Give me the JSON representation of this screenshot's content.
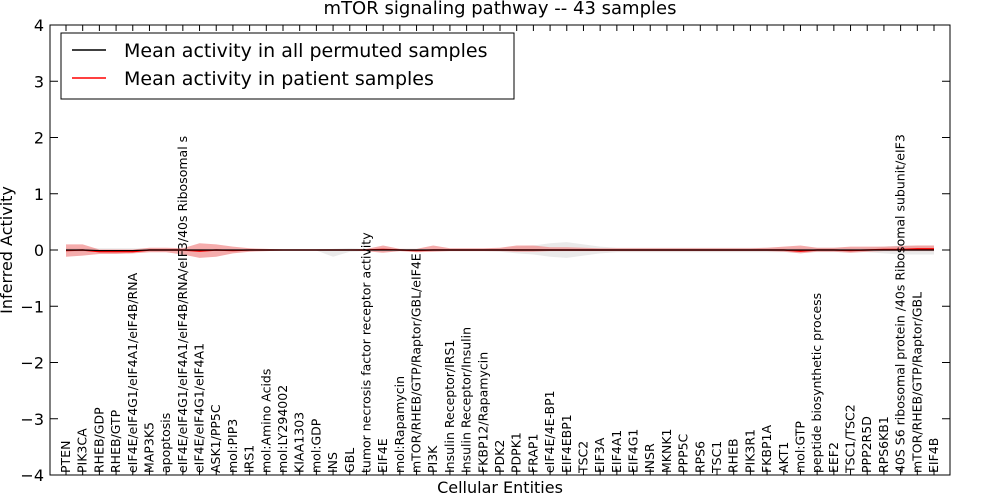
{
  "chart_data": {
    "type": "line",
    "title": "mTOR signaling pathway -- 43 samples",
    "xlabel": "Cellular Entities",
    "ylabel": "Inferred Activity",
    "ylim": [
      -4,
      4
    ],
    "yticks": [
      -4,
      -3,
      -2,
      -1,
      0,
      1,
      2,
      3,
      4
    ],
    "ytick_labels": [
      "−4",
      "−3",
      "−2",
      "−1",
      "0",
      "1",
      "2",
      "3",
      "4"
    ],
    "grid": false,
    "legend_position": "top-left",
    "categories": [
      "PTEN",
      "PIK3CA",
      "RHEB/GDP",
      "RHEB/GTP",
      "eIF4E/eIF4G1/eIF4A1/eIF4B/RNA",
      "MAP3K5",
      "apoptosis",
      "eIF4E/eIF4G1/eIF4A1/eIF4B/RNA/eIF3/40s Ribosomal s",
      "eIF4E/eIF4G1/eIF4A1",
      "ASK1/PP5C",
      "mol:PIP3",
      "IRS1",
      "mol:Amino Acids",
      "mol:LY294002",
      "KIAA1303",
      "mol:GDP",
      "INS",
      "GBL",
      "tumor necrosis factor receptor activity",
      "EIF4E",
      "mol:Rapamycin",
      "mTOR/RHEB/GTP/Raptor/GBL/eIF4E",
      "PI3K",
      "Insulin Receptor/IRS1",
      "Insulin Receptor/Insulin",
      "FKBP12/Rapamycin",
      "PDK2",
      "PDPK1",
      "FRAP1",
      "eIF4E/4E-BP1",
      "EIF4EBP1",
      "TSC2",
      "EIF3A",
      "EIF4A1",
      "EIF4G1",
      "INSR",
      "MKNK1",
      "PPP5C",
      "RPS6",
      "TSC1",
      "RHEB",
      "PIK3R1",
      "FKBP1A",
      "AKT1",
      "mol:GTP",
      "peptide biosynthetic process",
      "EEF2",
      "TSC1/TSC2",
      "PPP2R5D",
      "RPS6KB1",
      "40S S6 ribosomal protein /40s Ribosomal subunit/eIF3",
      "mTOR/RHEB/GTP/Raptor/GBL",
      "EIF4B"
    ],
    "series": [
      {
        "name": "Mean activity in all permuted samples",
        "color": "#000000",
        "values": [
          0,
          0,
          -0.01,
          -0.01,
          -0.01,
          0,
          0,
          0,
          0,
          0,
          0,
          0,
          0,
          0,
          0,
          0,
          0,
          0,
          0,
          0,
          0,
          0,
          0,
          0,
          0,
          0,
          0,
          0,
          0,
          0,
          0,
          0,
          0,
          0,
          0,
          0,
          0,
          0,
          0,
          0,
          0,
          0,
          0,
          0,
          0,
          0,
          0,
          0,
          0,
          0,
          0,
          0,
          0
        ],
        "band_low": [
          -0.04,
          -0.03,
          -0.03,
          -0.03,
          -0.03,
          -0.02,
          -0.02,
          -0.02,
          -0.02,
          -0.02,
          -0.02,
          -0.01,
          -0.01,
          -0.01,
          -0.01,
          -0.01,
          -0.12,
          -0.03,
          -0.02,
          -0.03,
          -0.02,
          -0.02,
          -0.02,
          -0.02,
          -0.02,
          -0.02,
          -0.03,
          -0.06,
          -0.08,
          -0.12,
          -0.14,
          -0.1,
          -0.06,
          -0.04,
          -0.04,
          -0.04,
          -0.04,
          -0.04,
          -0.04,
          -0.04,
          -0.04,
          -0.04,
          -0.04,
          -0.04,
          -0.04,
          -0.04,
          -0.04,
          -0.04,
          -0.04,
          -0.06,
          -0.08,
          -0.08,
          -0.08
        ],
        "band_high": [
          0.04,
          0.03,
          0.03,
          0.03,
          0.03,
          0.02,
          0.02,
          0.02,
          0.02,
          0.02,
          0.02,
          0.01,
          0.01,
          0.01,
          0.01,
          0.01,
          0.02,
          0.03,
          0.02,
          0.03,
          0.02,
          0.02,
          0.02,
          0.02,
          0.02,
          0.02,
          0.03,
          0.06,
          0.08,
          0.12,
          0.14,
          0.1,
          0.06,
          0.04,
          0.04,
          0.04,
          0.04,
          0.04,
          0.04,
          0.04,
          0.04,
          0.04,
          0.04,
          0.04,
          0.04,
          0.04,
          0.04,
          0.04,
          0.04,
          0.06,
          0.08,
          0.08,
          0.08
        ]
      },
      {
        "name": "Mean activity in patient samples",
        "color": "#ff0000",
        "values": [
          -0.01,
          0,
          -0.03,
          -0.03,
          -0.03,
          0,
          0,
          0,
          -0.02,
          0,
          -0.01,
          0,
          0,
          0,
          0,
          0,
          0,
          0,
          0,
          0.01,
          0,
          -0.01,
          0,
          0,
          0,
          0,
          0,
          0,
          0,
          0,
          0,
          0,
          0,
          0,
          0,
          0,
          0,
          0,
          0,
          0,
          0,
          0,
          0,
          0,
          -0.02,
          0,
          0,
          -0.01,
          0,
          0.01,
          0.01,
          0.02,
          0.02
        ],
        "band_low": [
          -0.12,
          -0.1,
          -0.07,
          -0.07,
          -0.06,
          -0.04,
          -0.04,
          -0.08,
          -0.14,
          -0.12,
          -0.06,
          -0.03,
          -0.02,
          -0.01,
          -0.01,
          -0.01,
          -0.01,
          -0.01,
          -0.02,
          -0.05,
          -0.02,
          -0.04,
          -0.03,
          -0.02,
          -0.02,
          -0.02,
          -0.02,
          -0.03,
          -0.03,
          -0.02,
          -0.02,
          -0.02,
          -0.02,
          -0.02,
          -0.02,
          -0.02,
          -0.02,
          -0.02,
          -0.02,
          -0.02,
          -0.02,
          -0.02,
          -0.02,
          -0.03,
          -0.06,
          -0.03,
          -0.03,
          -0.05,
          -0.03,
          -0.02,
          -0.02,
          -0.02,
          -0.02
        ],
        "band_high": [
          0.1,
          0.1,
          0.01,
          0.01,
          0.01,
          0.04,
          0.04,
          0.03,
          0.12,
          0.1,
          0.06,
          0.03,
          0.02,
          0.01,
          0.01,
          0.01,
          0.01,
          0.01,
          0.02,
          0.08,
          0.02,
          0.02,
          0.08,
          0.03,
          0.03,
          0.03,
          0.04,
          0.08,
          0.08,
          0.05,
          0.05,
          0.04,
          0.03,
          0.03,
          0.03,
          0.03,
          0.03,
          0.03,
          0.03,
          0.03,
          0.03,
          0.03,
          0.04,
          0.06,
          0.08,
          0.04,
          0.04,
          0.06,
          0.06,
          0.06,
          0.07,
          0.08,
          0.08
        ]
      }
    ],
    "colors": {
      "permuted_line": "#000000",
      "permuted_band": "#d8d8d8",
      "patient_line": "#ff0000",
      "patient_band": "#f08080"
    }
  }
}
